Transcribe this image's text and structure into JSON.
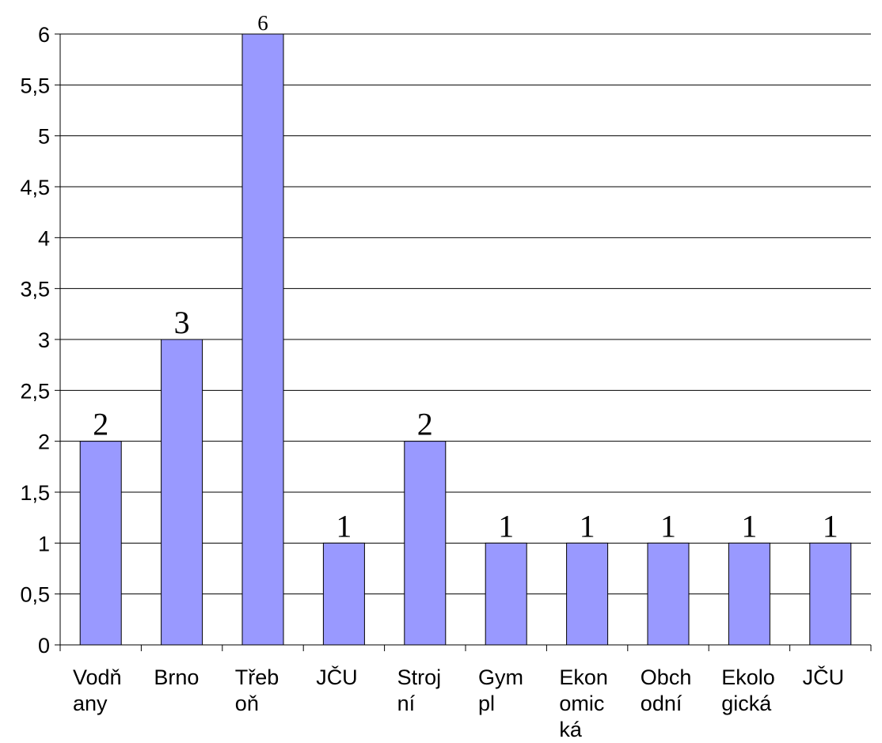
{
  "chart_data": {
    "type": "bar",
    "title": "",
    "xlabel": "",
    "ylabel": "",
    "ylim": [
      0,
      6
    ],
    "ytick_step": 0.5,
    "ytick_labels": [
      "0",
      "0,5",
      "1",
      "1,5",
      "2",
      "2,5",
      "3",
      "3,5",
      "4",
      "4,5",
      "5",
      "5,5",
      "6"
    ],
    "grid": "horizontal",
    "legend": "none",
    "bar_color": "#9999ff",
    "categories": [
      [
        "Vodň",
        "any"
      ],
      [
        "Brno"
      ],
      [
        "Třeb",
        "oň"
      ],
      [
        "JČU"
      ],
      [
        "Stroj",
        "ní"
      ],
      [
        "Gym",
        "pl"
      ],
      [
        "Ekon",
        "omic",
        "ká"
      ],
      [
        "Obch",
        "odní"
      ],
      [
        "Ekolo",
        "gická"
      ],
      [
        "JČU"
      ]
    ],
    "values": [
      2,
      3,
      6,
      1,
      2,
      1,
      1,
      1,
      1,
      1
    ],
    "data_labels": [
      "2",
      "3",
      "6",
      "1",
      "2",
      "1",
      "1",
      "1",
      "1",
      "1"
    ]
  }
}
